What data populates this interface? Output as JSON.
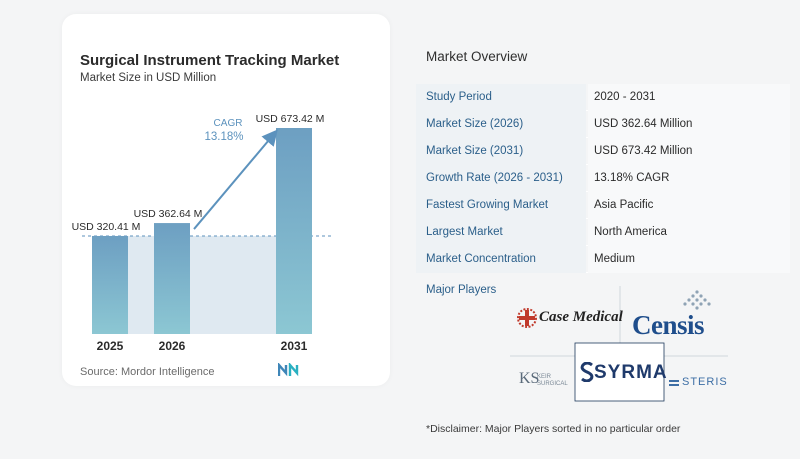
{
  "chart": {
    "title": "Surgical Instrument Tracking Market",
    "subtitle": "Market Size in USD Million",
    "source": "Source:  Mordor Intelligence",
    "cagr_label": "CAGR",
    "cagr_value": "13.18%"
  },
  "chart_data": {
    "type": "bar",
    "title": "Surgical Instrument Tracking Market",
    "subtitle": "Market Size in USD Million",
    "categories": [
      "2025",
      "2026",
      "2031"
    ],
    "values": [
      320.41,
      362.64,
      673.42
    ],
    "data_labels": [
      "USD 320.41 M",
      "USD 362.64 M",
      "USD 673.42 M"
    ],
    "ylim": [
      0,
      700
    ],
    "grid": false,
    "annotation": {
      "text": "CAGR 13.18%",
      "from": "2026",
      "to": "2031"
    },
    "colors": {
      "bar_top": "#6d9fc2",
      "bar_bottom": "#8cc7d3",
      "band": "#dfe9f1",
      "arrow": "#5c92bd",
      "baseline": "#5c92bd"
    }
  },
  "overview": {
    "title": "Market Overview",
    "rows": [
      {
        "label": "Study Period",
        "value": "2020 - 2031"
      },
      {
        "label": "Market Size (2026)",
        "value": "USD 362.64 Million"
      },
      {
        "label": "Market Size (2031)",
        "value": "USD 673.42 Million"
      },
      {
        "label": "Growth Rate (2026 - 2031)",
        "value": "13.18% CAGR"
      },
      {
        "label": "Fastest Growing Market",
        "value": "Asia Pacific"
      },
      {
        "label": "Largest Market",
        "value": "North America"
      },
      {
        "label": "Market Concentration",
        "value": "Medium"
      }
    ]
  },
  "players": {
    "title": "Major Players",
    "logos": [
      "Case Medical",
      "Censis",
      "KS",
      "KEIR SURGICAL",
      "SYRMA",
      "STERIS"
    ],
    "disclaimer": "*Disclaimer: Major Players sorted in no particular order"
  }
}
